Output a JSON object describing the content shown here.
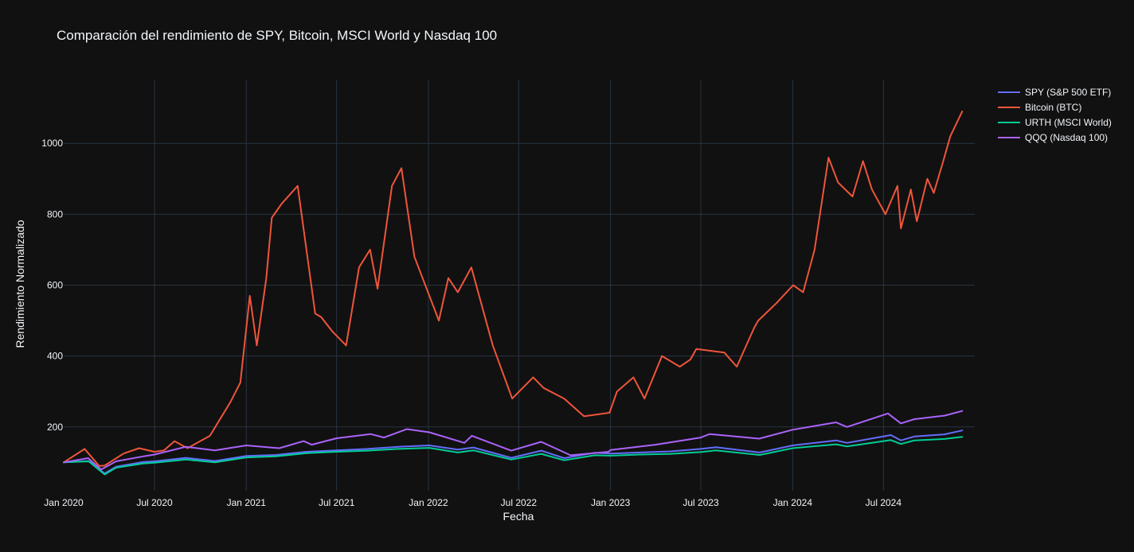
{
  "chart_data": {
    "type": "line",
    "title": "Comparación del rendimiento de SPY, Bitcoin, MSCI World y Nasdaq 100",
    "xlabel": "Fecha",
    "ylabel": "Rendimiento Normalizado",
    "x_range": [
      "2020-01-01",
      "2024-12-31"
    ],
    "ylim": [
      20,
      1180
    ],
    "x_ticks": [
      "Jan 2020",
      "Jul 2020",
      "Jan 2021",
      "Jul 2021",
      "Jan 2022",
      "Jul 2022",
      "Jan 2023",
      "Jul 2023",
      "Jan 2024",
      "Jul 2024"
    ],
    "x_tick_dates": [
      "2020-01-01",
      "2020-07-01",
      "2021-01-01",
      "2021-07-01",
      "2022-01-01",
      "2022-07-01",
      "2023-01-01",
      "2023-07-01",
      "2024-01-01",
      "2024-07-01"
    ],
    "y_ticks": [
      200,
      400,
      600,
      800,
      1000
    ],
    "grid": true,
    "legend_position": "top-right",
    "background": "#111111",
    "series": [
      {
        "name": "SPY (S&P 500 ETF)",
        "color": "#636efa",
        "x": [
          "2020-01-01",
          "2020-02-20",
          "2020-03-23",
          "2020-04-15",
          "2020-06-08",
          "2020-07-01",
          "2020-09-02",
          "2020-10-30",
          "2021-01-01",
          "2021-03-01",
          "2021-05-01",
          "2021-07-01",
          "2021-09-01",
          "2021-11-01",
          "2022-01-03",
          "2022-03-01",
          "2022-04-01",
          "2022-06-16",
          "2022-08-15",
          "2022-09-30",
          "2022-11-30",
          "2023-01-01",
          "2023-03-01",
          "2023-05-01",
          "2023-07-01",
          "2023-07-31",
          "2023-10-27",
          "2024-01-01",
          "2024-03-28",
          "2024-04-19",
          "2024-07-16",
          "2024-08-05",
          "2024-09-01",
          "2024-10-31",
          "2024-12-06"
        ],
        "values": [
          100,
          104,
          69,
          88,
          101,
          103,
          113,
          104,
          118,
          121,
          130,
          134,
          138,
          144,
          148,
          136,
          142,
          113,
          133,
          112,
          127,
          125,
          128,
          131,
          138,
          143,
          128,
          148,
          162,
          155,
          177,
          162,
          173,
          179,
          190
        ]
      },
      {
        "name": "Bitcoin (BTC)",
        "color": "#ef553b",
        "x": [
          "2020-01-01",
          "2020-02-12",
          "2020-03-12",
          "2020-03-23",
          "2020-04-30",
          "2020-05-31",
          "2020-07-01",
          "2020-07-20",
          "2020-08-10",
          "2020-09-05",
          "2020-10-20",
          "2020-11-30",
          "2020-12-20",
          "2021-01-08",
          "2021-01-22",
          "2021-02-10",
          "2021-02-21",
          "2021-03-13",
          "2021-04-14",
          "2021-05-19",
          "2021-05-31",
          "2021-06-22",
          "2021-07-20",
          "2021-08-15",
          "2021-09-06",
          "2021-09-21",
          "2021-10-20",
          "2021-11-08",
          "2021-12-04",
          "2022-01-22",
          "2022-02-10",
          "2022-03-01",
          "2022-03-28",
          "2022-05-10",
          "2022-06-18",
          "2022-07-30",
          "2022-08-20",
          "2022-09-30",
          "2022-11-09",
          "2022-12-30",
          "2023-01-14",
          "2023-02-16",
          "2023-03-10",
          "2023-04-14",
          "2023-05-20",
          "2023-06-10",
          "2023-06-22",
          "2023-08-17",
          "2023-09-11",
          "2023-10-16",
          "2023-10-24",
          "2023-11-30",
          "2024-01-02",
          "2024-01-22",
          "2024-02-14",
          "2024-03-13",
          "2024-04-01",
          "2024-04-30",
          "2024-05-21",
          "2024-06-08",
          "2024-07-05",
          "2024-07-29",
          "2024-08-05",
          "2024-08-25",
          "2024-09-06",
          "2024-09-27",
          "2024-10-10",
          "2024-10-29",
          "2024-11-12",
          "2024-12-06"
        ],
        "values": [
          100,
          138,
          90,
          91,
          125,
          140,
          130,
          134,
          160,
          140,
          175,
          270,
          325,
          570,
          430,
          620,
          790,
          830,
          880,
          520,
          510,
          470,
          430,
          650,
          700,
          590,
          880,
          930,
          680,
          500,
          620,
          580,
          650,
          430,
          280,
          340,
          310,
          280,
          230,
          240,
          300,
          340,
          280,
          400,
          370,
          390,
          420,
          410,
          370,
          480,
          500,
          550,
          600,
          580,
          700,
          960,
          890,
          850,
          950,
          870,
          800,
          880,
          760,
          870,
          780,
          900,
          860,
          950,
          1020,
          1090
        ]
      },
      {
        "name": "URTH (MSCI World)",
        "color": "#00cc96",
        "x": [
          "2020-01-01",
          "2020-02-20",
          "2020-03-23",
          "2020-04-15",
          "2020-06-08",
          "2020-07-01",
          "2020-09-02",
          "2020-10-30",
          "2021-01-01",
          "2021-03-01",
          "2021-05-01",
          "2021-07-01",
          "2021-09-01",
          "2021-11-01",
          "2022-01-03",
          "2022-03-01",
          "2022-04-01",
          "2022-06-16",
          "2022-08-15",
          "2022-09-30",
          "2022-11-30",
          "2023-01-01",
          "2023-03-01",
          "2023-05-01",
          "2023-07-01",
          "2023-07-31",
          "2023-10-27",
          "2024-01-01",
          "2024-03-28",
          "2024-04-19",
          "2024-07-16",
          "2024-08-05",
          "2024-09-01",
          "2024-10-31",
          "2024-12-06"
        ],
        "values": [
          100,
          103,
          66,
          85,
          97,
          99,
          108,
          100,
          114,
          117,
          126,
          130,
          133,
          138,
          141,
          128,
          134,
          108,
          124,
          106,
          120,
          119,
          122,
          124,
          129,
          134,
          121,
          140,
          151,
          145,
          163,
          152,
          162,
          166,
          172
        ]
      },
      {
        "name": "QQQ (Nasdaq 100)",
        "color": "#ab63fa",
        "x": [
          "2020-01-01",
          "2020-02-19",
          "2020-03-16",
          "2020-04-15",
          "2020-06-08",
          "2020-07-01",
          "2020-09-02",
          "2020-10-30",
          "2021-01-01",
          "2021-03-08",
          "2021-04-26",
          "2021-05-12",
          "2021-07-01",
          "2021-09-07",
          "2021-10-04",
          "2021-11-19",
          "2022-01-03",
          "2022-03-14",
          "2022-03-29",
          "2022-06-16",
          "2022-08-15",
          "2022-10-13",
          "2022-12-28",
          "2023-01-01",
          "2023-04-01",
          "2023-07-01",
          "2023-07-19",
          "2023-10-26",
          "2024-01-01",
          "2024-03-28",
          "2024-04-19",
          "2024-07-10",
          "2024-08-05",
          "2024-09-01",
          "2024-11-01",
          "2024-12-06"
        ],
        "values": [
          100,
          112,
          80,
          103,
          117,
          122,
          144,
          134,
          148,
          140,
          160,
          150,
          168,
          180,
          170,
          194,
          185,
          155,
          175,
          133,
          158,
          120,
          130,
          135,
          150,
          170,
          180,
          167,
          192,
          213,
          200,
          238,
          210,
          222,
          232,
          245
        ]
      }
    ]
  }
}
